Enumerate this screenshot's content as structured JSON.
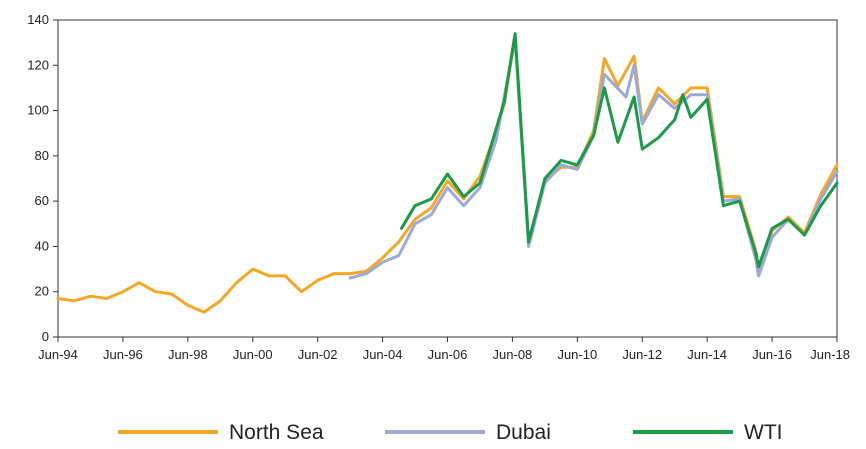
{
  "chart_data": {
    "type": "line",
    "title": "",
    "xlabel": "",
    "ylabel": "",
    "x_ticks": [
      "Jun-94",
      "Jun-96",
      "Jun-98",
      "Jun-00",
      "Jun-02",
      "Jun-04",
      "Jun-06",
      "Jun-08",
      "Jun-10",
      "Jun-12",
      "Jun-14",
      "Jun-16",
      "Jun-18"
    ],
    "xlim": [
      "1994-06",
      "2018-06"
    ],
    "ylim": [
      0,
      140
    ],
    "y_ticks": [
      "0",
      "20",
      "40",
      "60",
      "80",
      "100",
      "120",
      "140"
    ],
    "grid": false,
    "legend": "bottom",
    "series": [
      {
        "name": "North Sea",
        "color": "#f5a623",
        "points": [
          [
            "1994-06",
            17
          ],
          [
            "1994-12",
            16
          ],
          [
            "1995-06",
            18
          ],
          [
            "1995-12",
            17
          ],
          [
            "1996-06",
            20
          ],
          [
            "1996-12",
            24
          ],
          [
            "1997-06",
            20
          ],
          [
            "1997-12",
            19
          ],
          [
            "1998-06",
            14
          ],
          [
            "1998-12",
            11
          ],
          [
            "1999-06",
            16
          ],
          [
            "1999-12",
            24
          ],
          [
            "2000-06",
            30
          ],
          [
            "2000-12",
            27
          ],
          [
            "2001-06",
            27
          ],
          [
            "2001-12",
            20
          ],
          [
            "2002-06",
            25
          ],
          [
            "2002-12",
            28
          ],
          [
            "2003-06",
            28
          ],
          [
            "2003-12",
            29
          ],
          [
            "2004-06",
            35
          ],
          [
            "2004-12",
            42
          ],
          [
            "2005-06",
            52
          ],
          [
            "2005-12",
            57
          ],
          [
            "2006-06",
            69
          ],
          [
            "2006-12",
            61
          ],
          [
            "2007-06",
            71
          ],
          [
            "2007-12",
            91
          ],
          [
            "2008-03",
            103
          ],
          [
            "2008-07",
            133
          ],
          [
            "2008-12",
            42
          ],
          [
            "2009-06",
            69
          ],
          [
            "2009-12",
            75
          ],
          [
            "2010-06",
            75
          ],
          [
            "2010-12",
            91
          ],
          [
            "2011-04",
            123
          ],
          [
            "2011-09",
            111
          ],
          [
            "2012-03",
            124
          ],
          [
            "2012-06",
            95
          ],
          [
            "2012-12",
            110
          ],
          [
            "2013-06",
            103
          ],
          [
            "2013-12",
            110
          ],
          [
            "2014-06",
            110
          ],
          [
            "2014-12",
            62
          ],
          [
            "2015-06",
            62
          ],
          [
            "2015-12",
            38
          ],
          [
            "2016-01",
            30
          ],
          [
            "2016-06",
            47
          ],
          [
            "2016-12",
            53
          ],
          [
            "2017-06",
            46
          ],
          [
            "2017-12",
            63
          ],
          [
            "2018-06",
            76
          ]
        ]
      },
      {
        "name": "Dubai",
        "color": "#9aa9d8",
        "points": [
          [
            "2003-06",
            26
          ],
          [
            "2003-12",
            28
          ],
          [
            "2004-06",
            33
          ],
          [
            "2004-12",
            36
          ],
          [
            "2005-06",
            50
          ],
          [
            "2005-12",
            54
          ],
          [
            "2006-06",
            66
          ],
          [
            "2006-12",
            58
          ],
          [
            "2007-06",
            66
          ],
          [
            "2007-12",
            87
          ],
          [
            "2008-07",
            132
          ],
          [
            "2008-12",
            40
          ],
          [
            "2009-06",
            68
          ],
          [
            "2009-12",
            76
          ],
          [
            "2010-06",
            74
          ],
          [
            "2010-12",
            89
          ],
          [
            "2011-04",
            116
          ],
          [
            "2011-12",
            106
          ],
          [
            "2012-03",
            120
          ],
          [
            "2012-06",
            94
          ],
          [
            "2012-12",
            107
          ],
          [
            "2013-06",
            101
          ],
          [
            "2013-12",
            107
          ],
          [
            "2014-06",
            107
          ],
          [
            "2014-12",
            60
          ],
          [
            "2015-06",
            61
          ],
          [
            "2015-12",
            34
          ],
          [
            "2016-01",
            27
          ],
          [
            "2016-06",
            44
          ],
          [
            "2016-12",
            52
          ],
          [
            "2017-06",
            45
          ],
          [
            "2017-12",
            61
          ],
          [
            "2018-06",
            73
          ]
        ]
      },
      {
        "name": "WTI",
        "color": "#1a9b48",
        "points": [
          [
            "2005-01",
            48
          ],
          [
            "2005-06",
            58
          ],
          [
            "2005-12",
            61
          ],
          [
            "2006-06",
            72
          ],
          [
            "2006-12",
            62
          ],
          [
            "2007-06",
            68
          ],
          [
            "2007-12",
            92
          ],
          [
            "2008-03",
            104
          ],
          [
            "2008-07",
            134
          ],
          [
            "2008-12",
            42
          ],
          [
            "2009-06",
            70
          ],
          [
            "2009-12",
            78
          ],
          [
            "2010-06",
            76
          ],
          [
            "2010-12",
            89
          ],
          [
            "2011-04",
            110
          ],
          [
            "2011-09",
            86
          ],
          [
            "2012-03",
            106
          ],
          [
            "2012-06",
            83
          ],
          [
            "2012-12",
            88
          ],
          [
            "2013-06",
            96
          ],
          [
            "2013-09",
            107
          ],
          [
            "2013-12",
            97
          ],
          [
            "2014-06",
            105
          ],
          [
            "2014-12",
            58
          ],
          [
            "2015-06",
            60
          ],
          [
            "2015-12",
            37
          ],
          [
            "2016-01",
            31
          ],
          [
            "2016-06",
            48
          ],
          [
            "2016-12",
            52
          ],
          [
            "2017-06",
            45
          ],
          [
            "2017-12",
            58
          ],
          [
            "2018-06",
            68
          ]
        ]
      }
    ]
  }
}
